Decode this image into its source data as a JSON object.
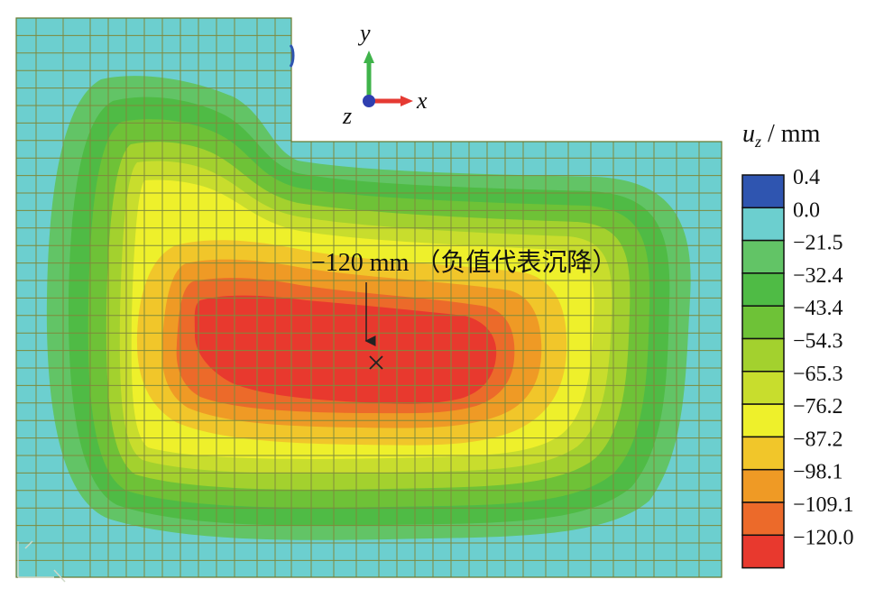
{
  "annotation": {
    "text": "−120 mm （负值代表沉降）"
  },
  "axes": {
    "x_label": "x",
    "y_label": "y",
    "z_label": "z"
  },
  "legend": {
    "title_var": "u",
    "title_sub": "z",
    "title_unit": " / mm",
    "levels": [
      {
        "label": "0.4",
        "color": "#2f55b0"
      },
      {
        "label": "0.0",
        "color": "#6ccfcf"
      },
      {
        "label": "−21.5",
        "color": "#62c466"
      },
      {
        "label": "−32.4",
        "color": "#4fbb45"
      },
      {
        "label": "−43.4",
        "color": "#6ec237"
      },
      {
        "label": "−54.3",
        "color": "#a3d12e"
      },
      {
        "label": "−65.3",
        "color": "#c8dd2d"
      },
      {
        "label": "−76.2",
        "color": "#eef02b"
      },
      {
        "label": "−87.2",
        "color": "#f1c62a"
      },
      {
        "label": "−98.1",
        "color": "#ef9a25"
      },
      {
        "label": "−109.1",
        "color": "#ec6a2a"
      },
      {
        "label": "−120.0",
        "color": "#e8392e"
      }
    ]
  },
  "contour_colors": {
    "background": "#6ccfcf",
    "mesh_line": "#7f8a3c"
  }
}
